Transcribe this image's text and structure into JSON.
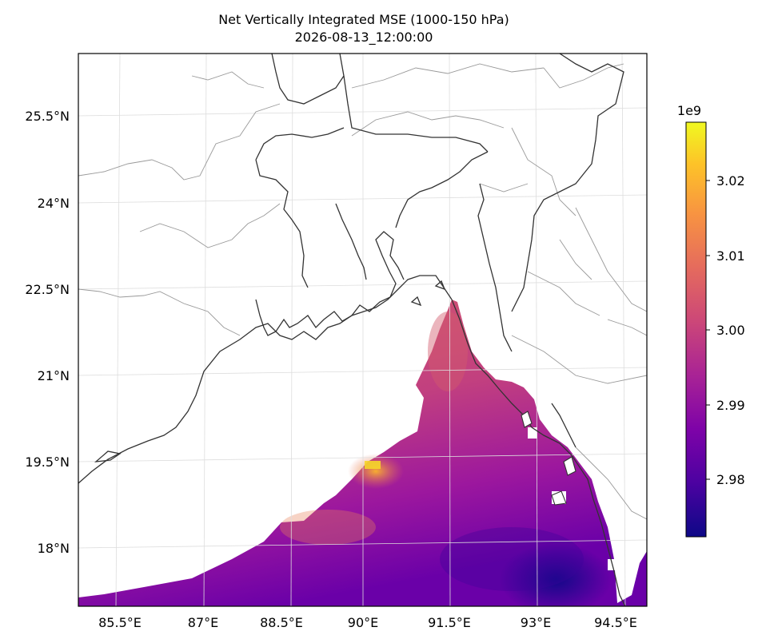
{
  "figure": {
    "title_line1": "Net Vertically Integrated MSE (1000-150 hPa)",
    "title_line2": "2026-08-13_12:00:00"
  },
  "map": {
    "projection": "PlateCarree",
    "extent_lon": [
      84.5,
      95.5
    ],
    "extent_lat": [
      17.0,
      26.5
    ],
    "lon_ticks": [
      "85.5°E",
      "87°E",
      "88.5°E",
      "90°E",
      "91.5°E",
      "93°E",
      "94.5°E"
    ],
    "lat_ticks": [
      "25.5°N",
      "24°N",
      "22.5°N",
      "21°N",
      "19.5°N",
      "18°N"
    ],
    "field": "Net vertically integrated MSE over ocean",
    "colormap": "plasma",
    "gridlines": true
  },
  "colorbar": {
    "exponent_label": "1e9",
    "tick_labels": [
      "3.02",
      "3.01",
      "3.00",
      "2.99",
      "2.98"
    ],
    "range": [
      2.972,
      3.028
    ]
  },
  "colors": {
    "low": "#0d0887",
    "mid": "#b12a90",
    "high": "#f0f921",
    "coastline": "#333333",
    "borders": "#999999"
  }
}
